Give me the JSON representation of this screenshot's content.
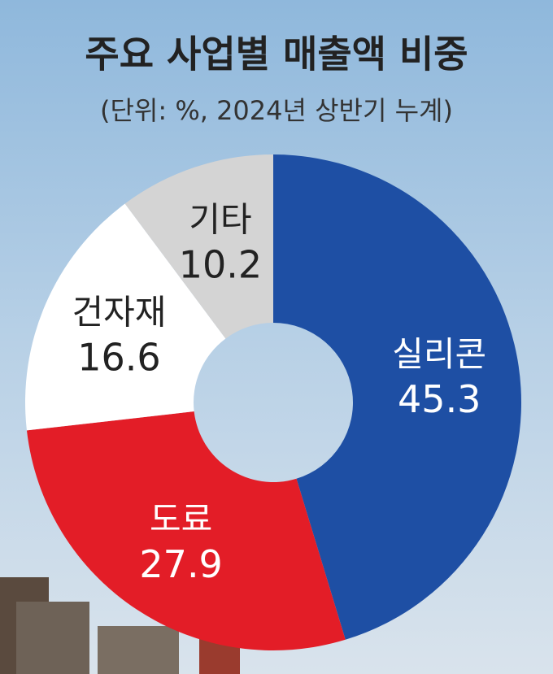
{
  "chart_data": {
    "type": "donut",
    "title": "주요 사업별 매출액 비중",
    "subtitle": "(단위: %, 2024년 상반기 누계)",
    "categories": [
      "실리콘",
      "도료",
      "건자재",
      "기타"
    ],
    "values": [
      45.3,
      27.9,
      16.6,
      10.2
    ],
    "colors": [
      "#1e4fa4",
      "#e31d27",
      "#ffffff",
      "#d4d4d4"
    ]
  }
}
